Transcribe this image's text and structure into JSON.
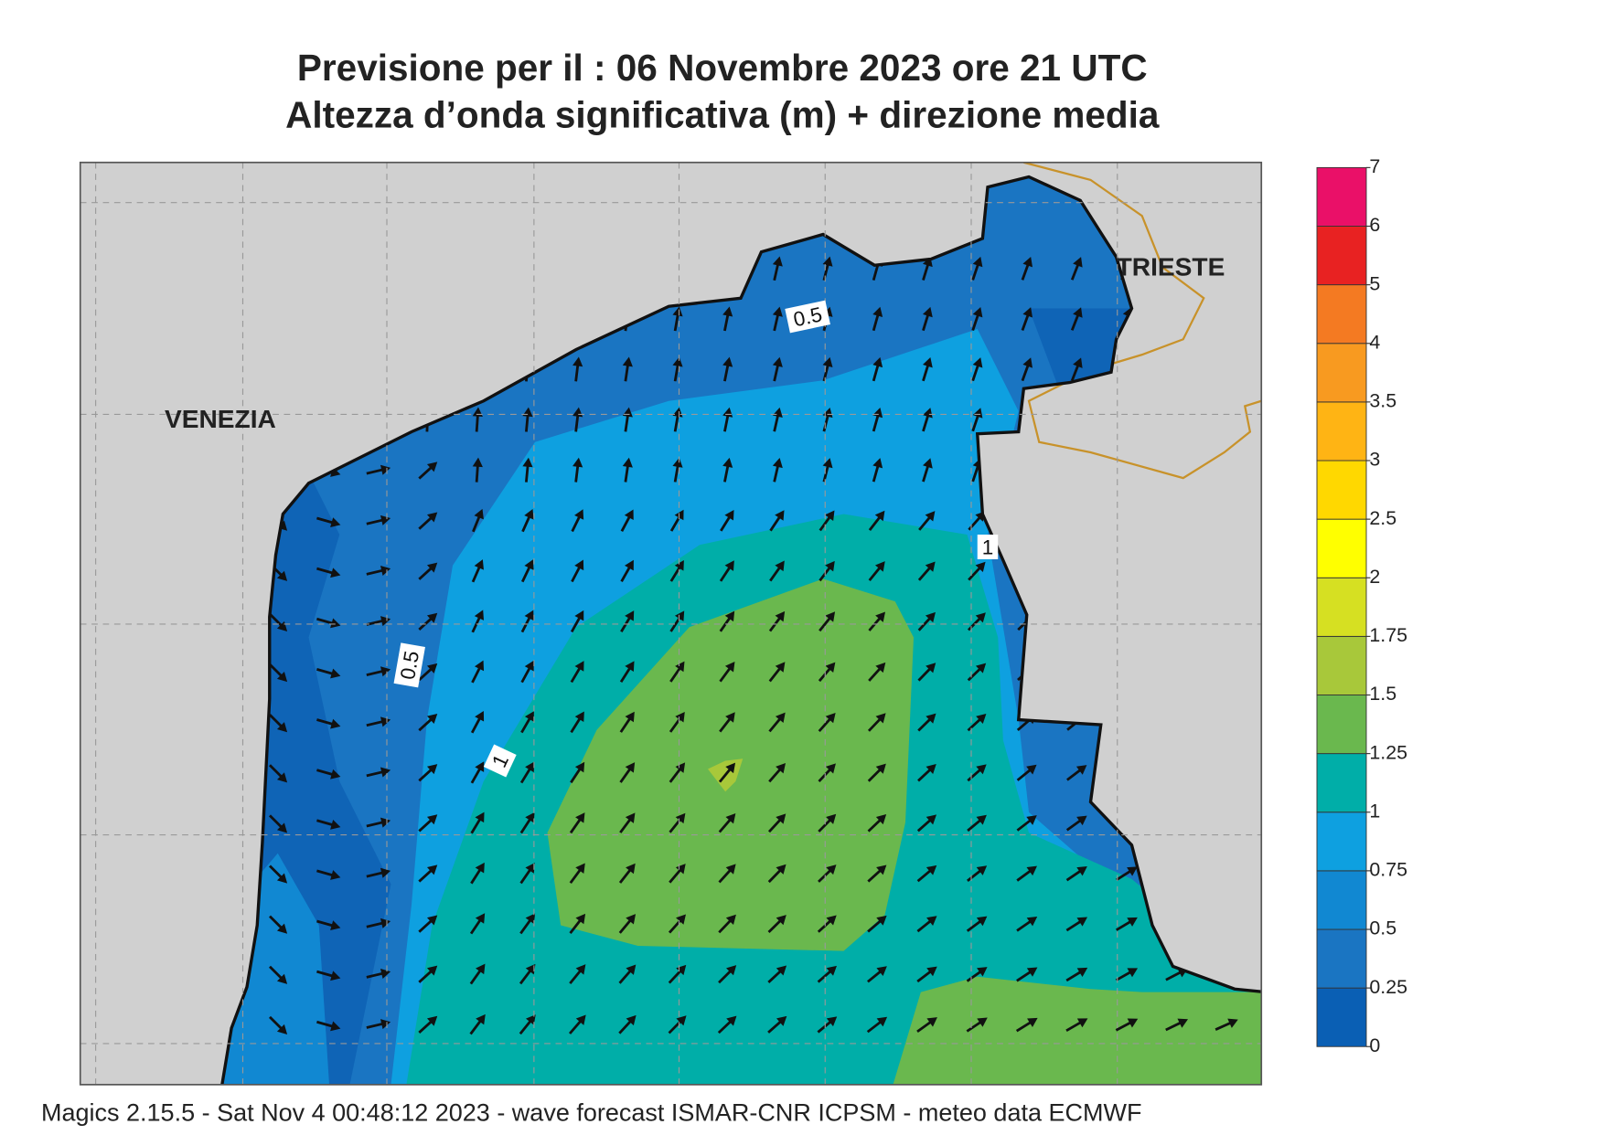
{
  "title": [
    "Previsione per il  :  06 Novembre  2023   ore 21 UTC",
    "Altezza d’onda significativa (m) + direzione media"
  ],
  "map": {
    "places": [
      "VENEZIA",
      "TRIESTE"
    ],
    "contour_labels": [
      "0.5",
      "0.5",
      "1",
      "1"
    ]
  },
  "legend": {
    "levels": [
      0,
      0.25,
      0.5,
      0.75,
      1,
      1.25,
      1.5,
      1.75,
      2,
      2.5,
      3,
      3.5,
      4,
      5,
      6,
      7
    ],
    "colors": [
      "#0a5fb4",
      "#1a75c2",
      "#1188d2",
      "#0ea0e0",
      "#00aea8",
      "#6ab84e",
      "#a8c83a",
      "#d6e022",
      "#ffff00",
      "#ffd800",
      "#ffb414",
      "#f89a20",
      "#f47a22",
      "#e82222",
      "#ea1068"
    ]
  },
  "footer": "Magics 2.15.5 - Sat Nov  4 00:48:12 2023 - wave forecast  ISMAR-CNR  ICPSM - meteo data   ECMWF"
}
